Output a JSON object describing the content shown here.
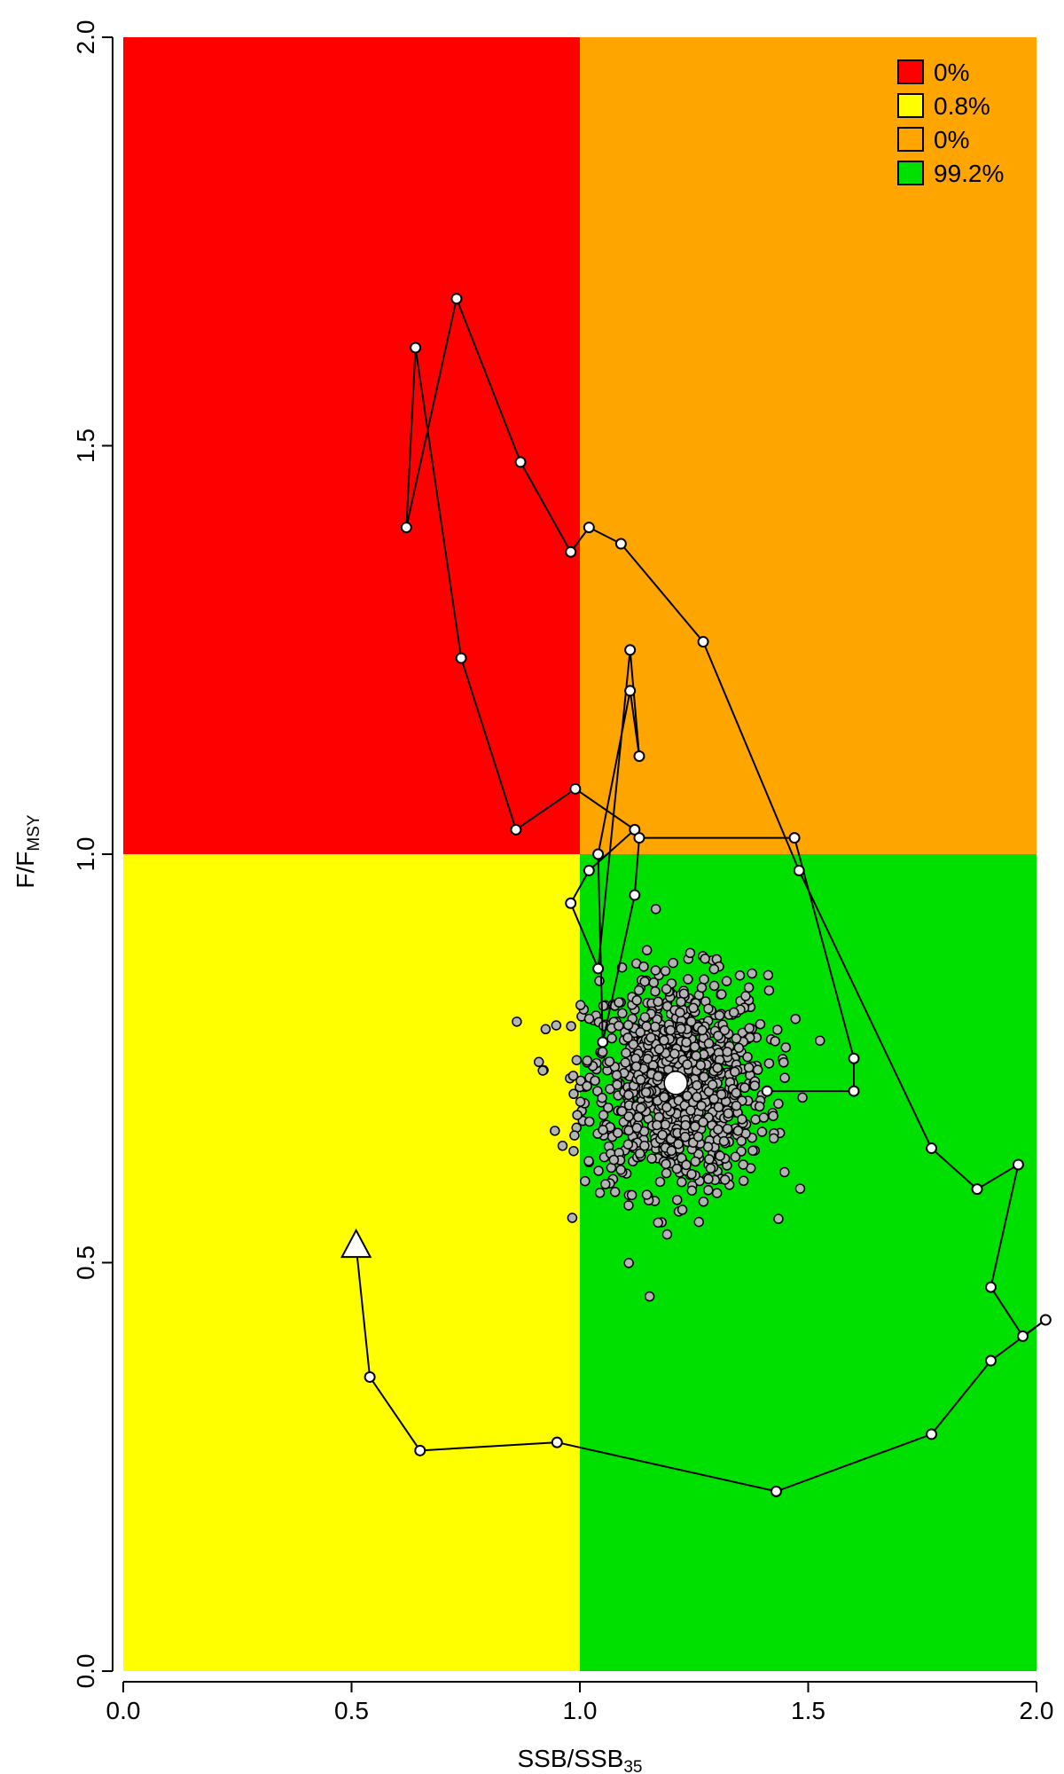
{
  "chart_data": {
    "type": "scatter",
    "xlabel": {
      "main": "SSB/SSB",
      "sub": "35"
    },
    "ylabel": {
      "main": "F/F",
      "sub": "MSY"
    },
    "xlim": [
      0,
      2
    ],
    "ylim": [
      0,
      2
    ],
    "x_ticks": [
      "0.0",
      "0.5",
      "1.0",
      "1.5",
      "2.0"
    ],
    "y_ticks": [
      "0.0",
      "0.5",
      "1.0",
      "1.5",
      "2.0"
    ],
    "grid": false,
    "legend_position": "top-right",
    "quadrants": [
      {
        "region": "F>1, SSB<1",
        "color": "#ff0000",
        "label": "0%"
      },
      {
        "region": "F<1, SSB<1",
        "color": "#ffff00",
        "label": "0.8%"
      },
      {
        "region": "F>1, SSB>1",
        "color": "#ffa500",
        "label": "0%"
      },
      {
        "region": "F<1, SSB>1",
        "color": "#00e000",
        "label": "99.2%"
      }
    ],
    "trajectory_start": {
      "x": 0.51,
      "y": 0.52,
      "marker": "triangle"
    },
    "trajectory": [
      [
        0.51,
        0.52
      ],
      [
        0.54,
        0.36
      ],
      [
        0.65,
        0.27
      ],
      [
        0.95,
        0.28
      ],
      [
        1.43,
        0.22
      ],
      [
        1.77,
        0.29
      ],
      [
        1.9,
        0.38
      ],
      [
        2.02,
        0.43
      ],
      [
        1.97,
        0.41
      ],
      [
        1.9,
        0.47
      ],
      [
        1.96,
        0.62
      ],
      [
        1.87,
        0.59
      ],
      [
        1.77,
        0.64
      ],
      [
        1.48,
        0.98
      ],
      [
        1.27,
        1.26
      ],
      [
        1.09,
        1.38
      ],
      [
        1.02,
        1.4
      ],
      [
        0.98,
        1.37
      ],
      [
        0.87,
        1.48
      ],
      [
        0.73,
        1.68
      ],
      [
        0.62,
        1.4
      ],
      [
        0.64,
        1.62
      ],
      [
        0.74,
        1.24
      ],
      [
        0.86,
        1.03
      ],
      [
        0.99,
        1.08
      ],
      [
        1.12,
        1.03
      ],
      [
        1.02,
        0.98
      ],
      [
        0.98,
        0.94
      ],
      [
        1.04,
        0.86
      ],
      [
        1.11,
        1.25
      ],
      [
        1.13,
        1.12
      ],
      [
        1.11,
        1.2
      ],
      [
        1.04,
        1.0
      ],
      [
        1.05,
        0.77
      ],
      [
        1.12,
        0.95
      ],
      [
        1.13,
        1.02
      ],
      [
        1.47,
        1.02
      ],
      [
        1.6,
        0.75
      ],
      [
        1.6,
        0.71
      ],
      [
        1.41,
        0.71
      ]
    ],
    "cloud": {
      "center": [
        1.21,
        0.72
      ],
      "sd_x": 0.1,
      "sd_y": 0.065,
      "n": 1000,
      "marker": "grey-point"
    },
    "final_estimate": {
      "x": 1.21,
      "y": 0.72,
      "marker": "large-white-point"
    }
  },
  "colors": {
    "red": "#ff0000",
    "yellow": "#ffff00",
    "orange": "#ffa500",
    "green": "#00e000",
    "point_fill": "#ffffff",
    "cloud_fill": "#b4b4b4"
  }
}
